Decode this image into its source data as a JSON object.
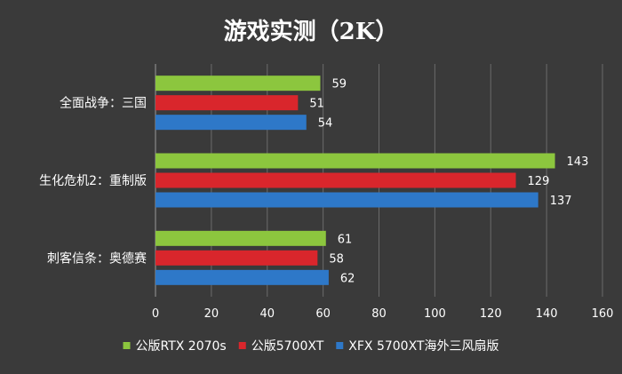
{
  "chart_data": {
    "type": "bar",
    "orientation": "horizontal",
    "title": "游戏实测（2K）",
    "categories": [
      "全面战争：三国",
      "生化危机2：重制版",
      "刺客信条：奥德赛"
    ],
    "series": [
      {
        "name": "公版RTX 2070s",
        "color": "#8cc63e",
        "values": [
          59,
          143,
          61
        ]
      },
      {
        "name": "公版5700XT",
        "color": "#d9262c",
        "values": [
          51,
          129,
          58
        ]
      },
      {
        "name": "XFX 5700XT海外三风扇版",
        "color": "#2e78c8",
        "values": [
          54,
          137,
          62
        ]
      }
    ],
    "xlim": [
      0,
      160
    ],
    "xticks": [
      0,
      20,
      40,
      60,
      80,
      100,
      120,
      140,
      160
    ],
    "grid": true,
    "legend_position": "bottom"
  }
}
